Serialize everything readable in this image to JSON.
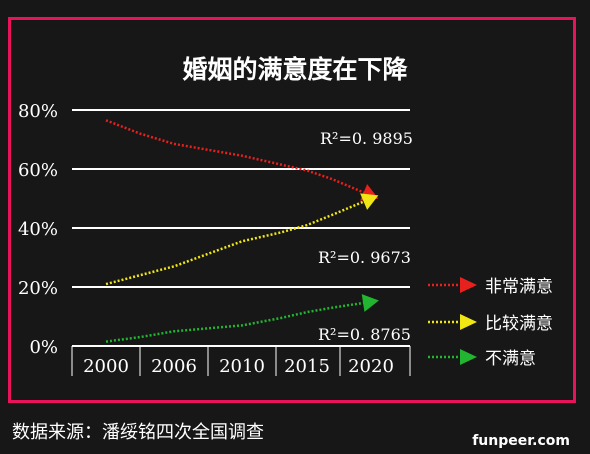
{
  "chart_data": {
    "type": "line",
    "title": "婚姻的满意度在下降",
    "categories": [
      "2000",
      "2006",
      "2010",
      "2015",
      "2020"
    ],
    "y_ticks": [
      "0%",
      "20%",
      "40%",
      "60%",
      "80%"
    ],
    "ylim": [
      0,
      80
    ],
    "xlabel": "",
    "ylabel": "",
    "grid": "horizontal",
    "legend_position": "bottom-right",
    "series": [
      {
        "name": "非常满意",
        "color": "#e8201e",
        "x": [
          2000,
          2003,
          2006,
          2010,
          2013,
          2015,
          2017,
          2020
        ],
        "values": [
          76.5,
          72,
          68.5,
          64.5,
          61.5,
          59.5,
          56.5,
          51
        ],
        "r2_label": "R²=0. 9895"
      },
      {
        "name": "比较满意",
        "color": "#f0e614",
        "x": [
          2000,
          2003,
          2006,
          2010,
          2013,
          2015,
          2017,
          2020
        ],
        "values": [
          21,
          24,
          27,
          35.5,
          38.5,
          41,
          44.5,
          50
        ],
        "r2_label": "R²=0. 9673"
      },
      {
        "name": "不满意",
        "color": "#21b531",
        "x": [
          2000,
          2003,
          2006,
          2010,
          2013,
          2015,
          2017,
          2020
        ],
        "values": [
          1.5,
          3,
          5,
          7,
          9.5,
          11.5,
          13,
          15
        ],
        "r2_label": "R²=0. 8765"
      }
    ]
  },
  "source_text": "数据来源：潘绥铭四次全国调查",
  "watermark": "funpeer.com"
}
